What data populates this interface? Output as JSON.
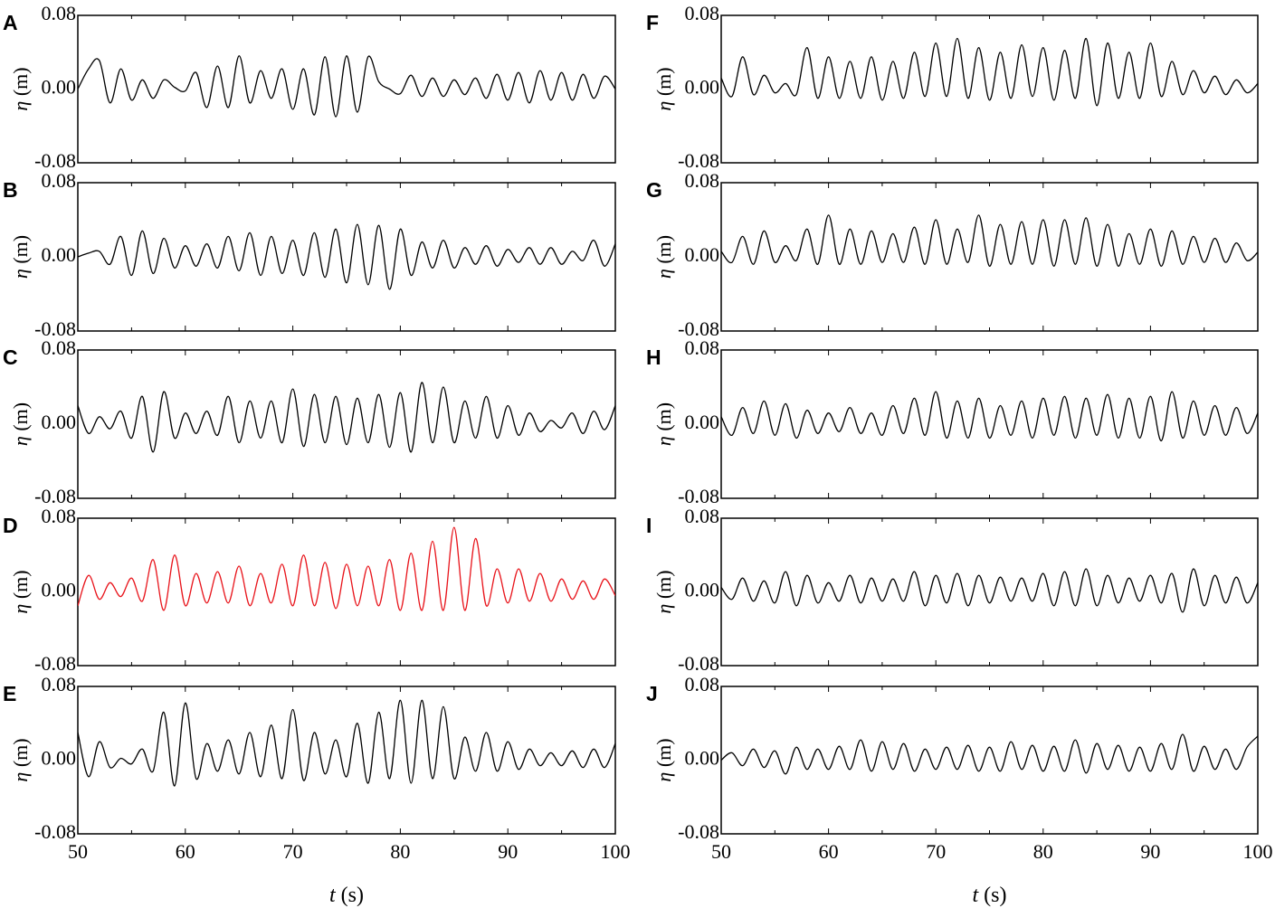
{
  "chart_data": [
    {
      "panel": "A",
      "type": "line",
      "xlabel": "",
      "ylabel_symbol": "η",
      "ylabel_unit": " (m)",
      "xlim": [
        50,
        100
      ],
      "ylim": [
        -0.08,
        0.08
      ],
      "color": "#000000",
      "yticks": [
        "0.08",
        "0.00",
        "-0.08"
      ],
      "xticks": [],
      "x": [
        50,
        51,
        52,
        53,
        54,
        55,
        56,
        57,
        58,
        59,
        60,
        61,
        62,
        63,
        64,
        65,
        66,
        67,
        68,
        69,
        70,
        71,
        72,
        73,
        74,
        75,
        76,
        77,
        78,
        79,
        80,
        81,
        82,
        83,
        84,
        85,
        86,
        87,
        88,
        89,
        90,
        91,
        92,
        93,
        94,
        95,
        96,
        97,
        98,
        99,
        100
      ],
      "y": [
        0.0,
        0.022,
        0.031,
        -0.015,
        0.022,
        -0.012,
        0.01,
        -0.01,
        0.01,
        0.002,
        -0.002,
        0.018,
        -0.02,
        0.025,
        -0.02,
        0.036,
        -0.015,
        0.02,
        -0.01,
        0.022,
        -0.022,
        0.022,
        -0.028,
        0.035,
        -0.03,
        0.036,
        -0.025,
        0.035,
        0.008,
        0.0,
        -0.005,
        0.015,
        -0.008,
        0.012,
        -0.008,
        0.01,
        -0.006,
        0.012,
        -0.01,
        0.016,
        -0.012,
        0.018,
        -0.015,
        0.02,
        -0.012,
        0.018,
        -0.012,
        0.016,
        -0.01,
        0.014,
        0.0
      ]
    },
    {
      "panel": "B",
      "type": "line",
      "xlabel": "",
      "ylabel_symbol": "η",
      "ylabel_unit": " (m)",
      "xlim": [
        50,
        100
      ],
      "ylim": [
        -0.08,
        0.08
      ],
      "color": "#000000",
      "yticks": [
        "0.08",
        "0.00",
        "-0.08"
      ],
      "xticks": [],
      "x": [
        50,
        51,
        52,
        53,
        54,
        55,
        56,
        57,
        58,
        59,
        60,
        61,
        62,
        63,
        64,
        65,
        66,
        67,
        68,
        69,
        70,
        71,
        72,
        73,
        74,
        75,
        76,
        77,
        78,
        79,
        80,
        81,
        82,
        83,
        84,
        85,
        86,
        87,
        88,
        89,
        90,
        91,
        92,
        93,
        94,
        95,
        96,
        97,
        98,
        99,
        100
      ],
      "y": [
        0.0,
        0.004,
        0.006,
        -0.008,
        0.022,
        -0.02,
        0.028,
        -0.018,
        0.02,
        -0.012,
        0.012,
        -0.01,
        0.014,
        -0.012,
        0.022,
        -0.015,
        0.026,
        -0.02,
        0.022,
        -0.018,
        0.018,
        -0.02,
        0.026,
        -0.022,
        0.03,
        -0.028,
        0.035,
        -0.03,
        0.034,
        -0.035,
        0.03,
        -0.02,
        0.016,
        -0.012,
        0.018,
        -0.012,
        0.01,
        -0.008,
        0.012,
        -0.01,
        0.008,
        -0.006,
        0.01,
        -0.008,
        0.01,
        -0.008,
        0.006,
        -0.004,
        0.018,
        -0.01,
        0.014
      ]
    },
    {
      "panel": "C",
      "type": "line",
      "xlabel": "",
      "ylabel_symbol": "η",
      "ylabel_unit": " (m)",
      "xlim": [
        50,
        100
      ],
      "ylim": [
        -0.08,
        0.08
      ],
      "color": "#000000",
      "yticks": [
        "0.08",
        "0.00",
        "-0.08"
      ],
      "xticks": [],
      "x": [
        50,
        51,
        52,
        53,
        54,
        55,
        56,
        57,
        58,
        59,
        60,
        61,
        62,
        63,
        64,
        65,
        66,
        67,
        68,
        69,
        70,
        71,
        72,
        73,
        74,
        75,
        76,
        77,
        78,
        79,
        80,
        81,
        82,
        83,
        84,
        85,
        86,
        87,
        88,
        89,
        90,
        91,
        92,
        93,
        94,
        95,
        96,
        97,
        98,
        99,
        100
      ],
      "y": [
        0.02,
        -0.01,
        0.008,
        -0.005,
        0.014,
        -0.015,
        0.03,
        -0.03,
        0.035,
        -0.015,
        0.012,
        -0.01,
        0.014,
        -0.012,
        0.03,
        -0.02,
        0.025,
        -0.015,
        0.025,
        -0.02,
        0.038,
        -0.024,
        0.032,
        -0.02,
        0.03,
        -0.022,
        0.028,
        -0.02,
        0.032,
        -0.025,
        0.034,
        -0.03,
        0.045,
        -0.02,
        0.04,
        -0.02,
        0.025,
        -0.015,
        0.03,
        -0.015,
        0.02,
        -0.012,
        0.012,
        -0.008,
        0.004,
        -0.004,
        0.012,
        -0.01,
        0.014,
        -0.006,
        0.02
      ]
    },
    {
      "panel": "D",
      "type": "line",
      "xlabel": "",
      "ylabel_symbol": "η",
      "ylabel_unit": " (m)",
      "xlim": [
        50,
        100
      ],
      "ylim": [
        -0.08,
        0.08
      ],
      "color": "#e8141b",
      "yticks": [
        "0.08",
        "0.00",
        "-0.08"
      ],
      "xticks": [],
      "x": [
        50,
        51,
        52,
        53,
        54,
        55,
        56,
        57,
        58,
        59,
        60,
        61,
        62,
        63,
        64,
        65,
        66,
        67,
        68,
        69,
        70,
        71,
        72,
        73,
        74,
        75,
        76,
        77,
        78,
        79,
        80,
        81,
        82,
        83,
        84,
        85,
        86,
        87,
        88,
        89,
        90,
        91,
        92,
        93,
        94,
        95,
        96,
        97,
        98,
        99,
        100
      ],
      "y": [
        -0.015,
        0.018,
        -0.008,
        0.01,
        -0.005,
        0.015,
        -0.01,
        0.035,
        -0.02,
        0.04,
        -0.015,
        0.02,
        -0.012,
        0.022,
        -0.012,
        0.028,
        -0.015,
        0.02,
        -0.012,
        0.03,
        -0.015,
        0.04,
        -0.015,
        0.032,
        -0.018,
        0.03,
        -0.015,
        0.028,
        -0.015,
        0.035,
        -0.02,
        0.042,
        -0.02,
        0.055,
        -0.02,
        0.07,
        -0.02,
        0.058,
        -0.015,
        0.025,
        -0.012,
        0.025,
        -0.01,
        0.02,
        -0.01,
        0.014,
        -0.008,
        0.012,
        -0.008,
        0.014,
        -0.004
      ]
    },
    {
      "panel": "E",
      "type": "line",
      "xlabel": "t",
      "xlabel_unit": " (s)",
      "ylabel_symbol": "η",
      "ylabel_unit": " (m)",
      "xlim": [
        50,
        100
      ],
      "ylim": [
        -0.08,
        0.08
      ],
      "color": "#000000",
      "yticks": [
        "0.08",
        "0.00",
        "-0.08"
      ],
      "xticks": [
        "50",
        "60",
        "70",
        "80",
        "90",
        "100"
      ],
      "x": [
        50,
        51,
        52,
        53,
        54,
        55,
        56,
        57,
        58,
        59,
        60,
        61,
        62,
        63,
        64,
        65,
        66,
        67,
        68,
        69,
        70,
        71,
        72,
        73,
        74,
        75,
        76,
        77,
        78,
        79,
        80,
        81,
        82,
        83,
        84,
        85,
        86,
        87,
        88,
        89,
        90,
        91,
        92,
        93,
        94,
        95,
        96,
        97,
        98,
        99,
        100
      ],
      "y": [
        0.03,
        -0.018,
        0.02,
        -0.008,
        0.002,
        -0.004,
        0.012,
        -0.012,
        0.052,
        -0.028,
        0.062,
        -0.02,
        0.018,
        -0.012,
        0.022,
        -0.015,
        0.03,
        -0.018,
        0.038,
        -0.02,
        0.055,
        -0.022,
        0.03,
        -0.015,
        0.022,
        -0.018,
        0.04,
        -0.025,
        0.052,
        -0.02,
        0.065,
        -0.025,
        0.065,
        -0.02,
        0.058,
        -0.02,
        0.025,
        -0.012,
        0.03,
        -0.012,
        0.02,
        -0.01,
        0.012,
        -0.006,
        0.008,
        -0.006,
        0.01,
        -0.008,
        0.012,
        -0.008,
        0.018
      ]
    },
    {
      "panel": "F",
      "type": "line",
      "xlabel": "",
      "ylabel_symbol": "η",
      "ylabel_unit": " (m)",
      "xlim": [
        50,
        100
      ],
      "ylim": [
        -0.08,
        0.08
      ],
      "color": "#000000",
      "yticks": [
        "0.08",
        "0.00",
        "-0.08"
      ],
      "xticks": [],
      "x": [
        50,
        51,
        52,
        53,
        54,
        55,
        56,
        57,
        58,
        59,
        60,
        61,
        62,
        63,
        64,
        65,
        66,
        67,
        68,
        69,
        70,
        71,
        72,
        73,
        74,
        75,
        76,
        77,
        78,
        79,
        80,
        81,
        82,
        83,
        84,
        85,
        86,
        87,
        88,
        89,
        90,
        91,
        92,
        93,
        94,
        95,
        96,
        97,
        98,
        99,
        100
      ],
      "y": [
        0.012,
        -0.008,
        0.035,
        -0.006,
        0.015,
        -0.004,
        0.006,
        -0.006,
        0.045,
        -0.01,
        0.035,
        -0.01,
        0.03,
        -0.01,
        0.035,
        -0.012,
        0.03,
        -0.01,
        0.04,
        -0.008,
        0.05,
        -0.008,
        0.055,
        -0.01,
        0.045,
        -0.012,
        0.04,
        -0.01,
        0.048,
        -0.008,
        0.045,
        -0.012,
        0.042,
        -0.01,
        0.055,
        -0.018,
        0.05,
        -0.01,
        0.04,
        -0.01,
        0.05,
        -0.008,
        0.03,
        -0.006,
        0.02,
        -0.004,
        0.014,
        -0.006,
        0.01,
        -0.004,
        0.006
      ]
    },
    {
      "panel": "G",
      "type": "line",
      "xlabel": "",
      "ylabel_symbol": "η",
      "ylabel_unit": " (m)",
      "xlim": [
        50,
        100
      ],
      "ylim": [
        -0.08,
        0.08
      ],
      "color": "#000000",
      "yticks": [
        "0.08",
        "0.00",
        "-0.08"
      ],
      "xticks": [],
      "x": [
        50,
        51,
        52,
        53,
        54,
        55,
        56,
        57,
        58,
        59,
        60,
        61,
        62,
        63,
        64,
        65,
        66,
        67,
        68,
        69,
        70,
        71,
        72,
        73,
        74,
        75,
        76,
        77,
        78,
        79,
        80,
        81,
        82,
        83,
        84,
        85,
        86,
        87,
        88,
        89,
        90,
        91,
        92,
        93,
        94,
        95,
        96,
        97,
        98,
        99,
        100
      ],
      "y": [
        0.006,
        -0.006,
        0.022,
        -0.008,
        0.028,
        -0.006,
        0.012,
        -0.004,
        0.03,
        -0.008,
        0.045,
        -0.008,
        0.03,
        -0.008,
        0.028,
        -0.006,
        0.025,
        -0.006,
        0.032,
        -0.008,
        0.04,
        -0.008,
        0.03,
        -0.006,
        0.045,
        -0.01,
        0.035,
        -0.008,
        0.038,
        -0.008,
        0.04,
        -0.01,
        0.04,
        -0.008,
        0.042,
        -0.01,
        0.035,
        -0.01,
        0.025,
        -0.008,
        0.03,
        -0.01,
        0.028,
        -0.008,
        0.022,
        -0.006,
        0.02,
        -0.006,
        0.015,
        -0.004,
        0.005
      ]
    },
    {
      "panel": "H",
      "type": "line",
      "xlabel": "",
      "ylabel_symbol": "η",
      "ylabel_unit": " (m)",
      "xlim": [
        50,
        100
      ],
      "ylim": [
        -0.08,
        0.08
      ],
      "color": "#000000",
      "yticks": [
        "0.08",
        "0.00",
        "-0.08"
      ],
      "xticks": [],
      "x": [
        50,
        51,
        52,
        53,
        54,
        55,
        56,
        57,
        58,
        59,
        60,
        61,
        62,
        63,
        64,
        65,
        66,
        67,
        68,
        69,
        70,
        71,
        72,
        73,
        74,
        75,
        76,
        77,
        78,
        79,
        80,
        81,
        82,
        83,
        84,
        85,
        86,
        87,
        88,
        89,
        90,
        91,
        92,
        93,
        94,
        95,
        96,
        97,
        98,
        99,
        100
      ],
      "y": [
        0.008,
        -0.012,
        0.018,
        -0.01,
        0.025,
        -0.012,
        0.022,
        -0.015,
        0.015,
        -0.01,
        0.012,
        -0.008,
        0.018,
        -0.01,
        0.012,
        -0.012,
        0.02,
        -0.01,
        0.028,
        -0.012,
        0.035,
        -0.015,
        0.025,
        -0.015,
        0.028,
        -0.015,
        0.02,
        -0.012,
        0.025,
        -0.015,
        0.028,
        -0.012,
        0.03,
        -0.015,
        0.028,
        -0.012,
        0.032,
        -0.015,
        0.028,
        -0.015,
        0.03,
        -0.018,
        0.035,
        -0.015,
        0.025,
        -0.012,
        0.02,
        -0.012,
        0.018,
        -0.01,
        0.012
      ]
    },
    {
      "panel": "I",
      "type": "line",
      "xlabel": "",
      "ylabel_symbol": "η",
      "ylabel_unit": " (m)",
      "xlim": [
        50,
        100
      ],
      "ylim": [
        -0.08,
        0.08
      ],
      "color": "#000000",
      "yticks": [
        "0.08",
        "0.00",
        "-0.08"
      ],
      "xticks": [],
      "x": [
        50,
        51,
        52,
        53,
        54,
        55,
        56,
        57,
        58,
        59,
        60,
        61,
        62,
        63,
        64,
        65,
        66,
        67,
        68,
        69,
        70,
        71,
        72,
        73,
        74,
        75,
        76,
        77,
        78,
        79,
        80,
        81,
        82,
        83,
        84,
        85,
        86,
        87,
        88,
        89,
        90,
        91,
        92,
        93,
        94,
        95,
        96,
        97,
        98,
        99,
        100
      ],
      "y": [
        0.005,
        -0.008,
        0.015,
        -0.01,
        0.012,
        -0.012,
        0.022,
        -0.015,
        0.018,
        -0.012,
        0.01,
        -0.01,
        0.018,
        -0.012,
        0.015,
        -0.01,
        0.014,
        -0.01,
        0.022,
        -0.015,
        0.018,
        -0.012,
        0.02,
        -0.015,
        0.018,
        -0.012,
        0.016,
        -0.01,
        0.015,
        -0.01,
        0.02,
        -0.015,
        0.022,
        -0.015,
        0.025,
        -0.015,
        0.018,
        -0.012,
        0.015,
        -0.01,
        0.018,
        -0.012,
        0.02,
        -0.022,
        0.025,
        -0.015,
        0.018,
        -0.012,
        0.016,
        -0.012,
        0.01
      ]
    },
    {
      "panel": "J",
      "type": "line",
      "xlabel": "t",
      "xlabel_unit": " (s)",
      "ylabel_symbol": "η",
      "ylabel_unit": " (m)",
      "xlim": [
        50,
        100
      ],
      "ylim": [
        -0.08,
        0.08
      ],
      "color": "#000000",
      "yticks": [
        "0.08",
        "0.00",
        "-0.08"
      ],
      "xticks": [
        "50",
        "60",
        "70",
        "80",
        "90",
        "100"
      ],
      "x": [
        50,
        51,
        52,
        53,
        54,
        55,
        56,
        57,
        58,
        59,
        60,
        61,
        62,
        63,
        64,
        65,
        66,
        67,
        68,
        69,
        70,
        71,
        72,
        73,
        74,
        75,
        76,
        77,
        78,
        79,
        80,
        81,
        82,
        83,
        84,
        85,
        86,
        87,
        88,
        89,
        90,
        91,
        92,
        93,
        94,
        95,
        96,
        97,
        98,
        99,
        100
      ],
      "y": [
        0.0,
        0.008,
        -0.006,
        0.012,
        -0.008,
        0.01,
        -0.015,
        0.014,
        -0.01,
        0.012,
        -0.01,
        0.015,
        -0.01,
        0.022,
        -0.012,
        0.02,
        -0.01,
        0.018,
        -0.012,
        0.012,
        -0.01,
        0.014,
        -0.01,
        0.016,
        -0.012,
        0.014,
        -0.012,
        0.02,
        -0.01,
        0.016,
        -0.012,
        0.015,
        -0.012,
        0.022,
        -0.014,
        0.018,
        -0.01,
        0.016,
        -0.012,
        0.014,
        -0.012,
        0.018,
        -0.01,
        0.028,
        -0.012,
        0.015,
        -0.01,
        0.012,
        -0.01,
        0.014,
        0.026
      ]
    }
  ]
}
